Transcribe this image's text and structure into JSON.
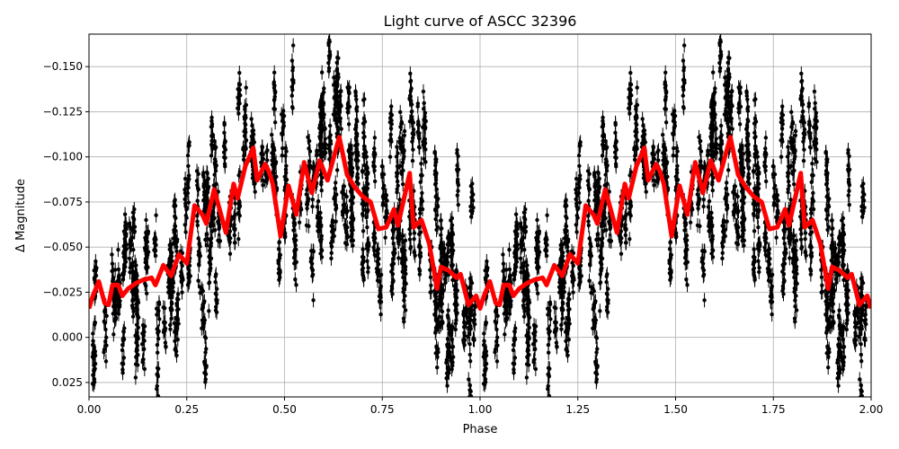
{
  "chart_data": {
    "type": "scatter",
    "title": "Light curve of ASCC 32396",
    "xlabel": "Phase",
    "ylabel": "Δ Magnitude",
    "xlim": [
      0,
      2
    ],
    "ylim": [
      0.033,
      -0.168
    ],
    "y_inverted": true,
    "grid": true,
    "x_ticks": [
      "0.00",
      "0.25",
      "0.50",
      "0.75",
      "1.00",
      "1.25",
      "1.50",
      "1.75",
      "2.00"
    ],
    "y_ticks": [
      "−0.150",
      "−0.125",
      "−0.100",
      "−0.075",
      "−0.050",
      "−0.025",
      "0.000",
      "0.025"
    ],
    "x_tick_values": [
      0,
      0.25,
      0.5,
      0.75,
      1,
      1.25,
      1.5,
      1.75,
      2
    ],
    "y_tick_values": [
      -0.15,
      -0.125,
      -0.1,
      -0.075,
      -0.05,
      -0.025,
      0,
      0.025
    ],
    "points_color": "#000000",
    "binned_curve": {
      "color": "#ff0000",
      "repeats_with_period": 1,
      "phase": [
        0,
        0.01,
        0.025,
        0.04,
        0.05,
        0.06,
        0.075,
        0.085,
        0.1,
        0.12,
        0.14,
        0.16,
        0.17,
        0.19,
        0.21,
        0.23,
        0.25,
        0.27,
        0.29,
        0.3,
        0.32,
        0.35,
        0.37,
        0.38,
        0.4,
        0.42,
        0.43,
        0.45,
        0.46,
        0.47,
        0.49,
        0.51,
        0.53,
        0.55,
        0.57,
        0.59,
        0.61,
        0.64,
        0.66,
        0.68,
        0.7,
        0.72,
        0.74,
        0.76,
        0.78,
        0.79,
        0.82,
        0.83,
        0.85,
        0.87,
        0.89,
        0.9,
        0.92,
        0.94,
        0.95,
        0.97,
        0.99,
        1.0
      ],
      "magnitude": [
        -0.016,
        -0.023,
        -0.031,
        -0.019,
        -0.018,
        -0.029,
        -0.029,
        -0.023,
        -0.027,
        -0.03,
        -0.032,
        -0.033,
        -0.029,
        -0.04,
        -0.034,
        -0.046,
        -0.041,
        -0.073,
        -0.068,
        -0.063,
        -0.082,
        -0.058,
        -0.085,
        -0.077,
        -0.095,
        -0.105,
        -0.087,
        -0.096,
        -0.092,
        -0.085,
        -0.056,
        -0.084,
        -0.068,
        -0.097,
        -0.08,
        -0.098,
        -0.087,
        -0.111,
        -0.09,
        -0.083,
        -0.078,
        -0.075,
        -0.06,
        -0.061,
        -0.071,
        -0.062,
        -0.091,
        -0.061,
        -0.065,
        -0.052,
        -0.027,
        -0.039,
        -0.037,
        -0.033,
        -0.035,
        -0.018,
        -0.023,
        -0.016
      ]
    }
  }
}
